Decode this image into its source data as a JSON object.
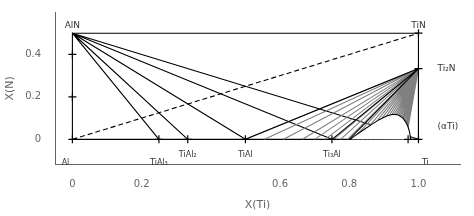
{
  "chart_data": {
    "type": "line",
    "xlabel": "X(Ti)",
    "ylabel": "X(N)",
    "xlim": [
      -0.05,
      1.12
    ],
    "ylim": [
      -0.12,
      0.6
    ],
    "xticks": [
      0,
      0.2,
      0.6,
      0.8,
      {
        "value": 1.0,
        "label": "1.0"
      }
    ],
    "yticks": [
      0,
      0.2,
      0.4
    ],
    "grid": false,
    "series": [
      {
        "type": "line",
        "color": "#000000",
        "line_style": "solid",
        "x": [
          0.0,
          0.0,
          1.0,
          1.0,
          1.0,
          0.0
        ],
        "values": [
          0.0,
          0.5,
          0.5,
          0.3333,
          0.0,
          0.0
        ]
      },
      {
        "type": "line",
        "color": "#000000",
        "line_style": "dashed",
        "x": [
          0.0,
          1.0
        ],
        "values": [
          0.0,
          0.5
        ]
      },
      {
        "type": "line",
        "color": "#000000",
        "line_style": "solid",
        "x": [
          0.0,
          0.25,
          null,
          0.0,
          0.3333,
          null,
          0.0,
          0.5,
          null,
          0.0,
          0.75,
          null,
          0.0,
          1.0
        ],
        "values": [
          0.5,
          0,
          null,
          0.5,
          0,
          null,
          0.5,
          0,
          null,
          0.5,
          0,
          null,
          0.5,
          0
        ]
      },
      {
        "type": "line",
        "color": "#808080",
        "line_style": "solid",
        "x": [
          1.0,
          0.5,
          null,
          1.0,
          0.555,
          null,
          1.0,
          0.61,
          null,
          1.0,
          0.665,
          null,
          1.0,
          0.7,
          null,
          1.0,
          0.73,
          null,
          1.0,
          0.755,
          null,
          1.0,
          0.775,
          null,
          1.0,
          0.795,
          null,
          1.0,
          0.81,
          null,
          1.0,
          0.825,
          null,
          1.0,
          0.838,
          null,
          1.0,
          0.85,
          null,
          1.0,
          0.862,
          null,
          1.0,
          0.873,
          null,
          1.0,
          0.883,
          null,
          1.0,
          0.892,
          null,
          1.0,
          0.9,
          null,
          1.0,
          0.907,
          null,
          1.0,
          0.914,
          null,
          1.0,
          0.92,
          null,
          1.0,
          0.926,
          null,
          1.0,
          0.932,
          null,
          1.0,
          0.937,
          null,
          1.0,
          0.942,
          null,
          1.0,
          0.947,
          null,
          1.0,
          0.952,
          null,
          1.0,
          0.956,
          null,
          1.0,
          0.96,
          null,
          1.0,
          0.964
        ],
        "values": [
          0.3333,
          0,
          null,
          0.3333,
          0,
          null,
          0.3333,
          0,
          null,
          0.3333,
          0,
          null,
          0.3333,
          0,
          null,
          0.3333,
          0,
          null,
          0.3333,
          0,
          null,
          0.3333,
          0,
          null,
          0.3333,
          0,
          null,
          0.3333,
          0,
          null,
          0.3333,
          0,
          null,
          0.3333,
          0,
          null,
          0.3333,
          0,
          null,
          0.3333,
          0,
          null,
          0.3333,
          0,
          null,
          0.3333,
          0,
          null,
          0.3333,
          0,
          null,
          0.3333,
          0,
          null,
          0.3333,
          0,
          null,
          0.3333,
          0,
          null,
          0.3333,
          0,
          null,
          0.3333,
          0,
          null,
          0.3333,
          0,
          null,
          0.3333,
          0,
          null,
          0.3333,
          0,
          null,
          0.3333,
          0,
          null,
          0.3333,
          0,
          null,
          0.3333,
          0,
          null,
          0.3333,
          0,
          null,
          0.3333,
          0
        ]
      },
      {
        "type": "line",
        "color": "#000000",
        "line_style": "solid",
        "x": [
          1.0,
          0.5,
          null,
          1.0,
          0.75,
          null,
          1.0,
          0.8,
          null,
          1.0,
          1.0
        ],
        "values": [
          0.3333,
          0,
          null,
          0.3333,
          0,
          null,
          0.3333,
          0,
          null,
          0.3333,
          0
        ]
      },
      {
        "type": "area",
        "color": "#000000",
        "line_style": "solid",
        "x": [
          0.803,
          0.815,
          0.83,
          0.848,
          0.868,
          0.888,
          0.908,
          0.926,
          0.942,
          0.955,
          0.964,
          0.97,
          0.974,
          0.976,
          0.977
        ],
        "values": [
          0.0,
          0.015,
          0.032,
          0.052,
          0.074,
          0.094,
          0.11,
          0.118,
          0.115,
          0.1,
          0.08,
          0.058,
          0.036,
          0.016,
          0.0
        ]
      },
      {
        "type": "scatter",
        "color": "#000000",
        "marker": "cross",
        "x": [
          0.0,
          0.25,
          0.3333,
          0.5,
          0.75,
          0.97,
          1.0,
          0.0,
          0.0,
          1.0,
          1.0
        ],
        "values": [
          0,
          0,
          0,
          0,
          0,
          0,
          0,
          0.2,
          0.4,
          0.5,
          0.3333
        ]
      }
    ],
    "annotations": [
      {
        "text": "AlN",
        "x": 0.0,
        "y": 0.5
      },
      {
        "text": "TiN",
        "x": 1.0,
        "y": 0.5
      },
      {
        "text": "Ti₂N",
        "x": 1.055,
        "y": 0.3333
      },
      {
        "text": "Al",
        "x": -0.02,
        "y": -0.09
      },
      {
        "text": "Ti",
        "x": 1.01,
        "y": -0.09
      },
      {
        "text": "TiAl₂",
        "x": 0.3333,
        "y": -0.055
      },
      {
        "text": "TiAl₃",
        "x": 0.25,
        "y": -0.09
      },
      {
        "text": "TiAl",
        "x": 0.5,
        "y": -0.055
      },
      {
        "text": "Ti₃Al",
        "x": 0.75,
        "y": -0.055
      },
      {
        "text": "(αTi)",
        "x": 1.055,
        "y": 0.06
      }
    ]
  }
}
